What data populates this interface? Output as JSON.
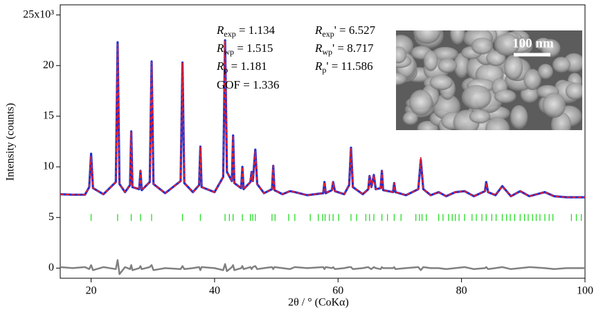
{
  "chart_data": {
    "type": "line",
    "x_label": "2θ / ° (CoKα)",
    "y_label": "Intensity (counts)",
    "xlim": [
      15,
      100
    ],
    "xticks": [
      20,
      40,
      60,
      80,
      100
    ],
    "ylim": [
      -1,
      26
    ],
    "yticks": [
      0,
      5,
      10,
      15,
      20,
      {
        "value": 25,
        "label": "25x10³"
      }
    ],
    "x": [
      15,
      17,
      19,
      19.7,
      20.0,
      20.3,
      22,
      24.0,
      24.3,
      24.6,
      25.5,
      26.3,
      26.5,
      26.7,
      27.8,
      28.0,
      28.2,
      29.5,
      29.8,
      30.1,
      32,
      34.5,
      34.8,
      35.1,
      36.5,
      37.5,
      37.7,
      37.9,
      40,
      41.4,
      41.7,
      42.0,
      42.8,
      43.0,
      43.2,
      44.3,
      44.5,
      44.7,
      45.8,
      46.0,
      46.2,
      46.6,
      46.9,
      48,
      49.3,
      49.5,
      49.7,
      51,
      52.2,
      53.0,
      55,
      57.6,
      57.8,
      58.0,
      59.0,
      59.2,
      59.5,
      61,
      61.8,
      62.1,
      62.4,
      64,
      64.9,
      65.1,
      65.4,
      65.8,
      66.1,
      66.9,
      67.1,
      67.3,
      68.9,
      69.1,
      69.3,
      71,
      73.0,
      73.4,
      73.8,
      75,
      76.3,
      77.5,
      79.0,
      80.5,
      82,
      83.8,
      84.0,
      84.3,
      85.5,
      86.6,
      88,
      89.5,
      91,
      93.5,
      95,
      97,
      100
    ],
    "series": [
      {
        "color": "#1f2fd0",
        "values": [
          7.3,
          7.25,
          7.25,
          8.0,
          11.3,
          7.9,
          7.3,
          8.5,
          22.3,
          8.3,
          7.5,
          8.2,
          13.5,
          8.0,
          7.8,
          9.6,
          7.7,
          8.5,
          20.4,
          8.3,
          7.4,
          8.6,
          20.3,
          8.4,
          7.5,
          8.2,
          12.0,
          8.0,
          7.5,
          9.0,
          22.5,
          9.5,
          8.6,
          13.1,
          8.4,
          7.9,
          10.0,
          7.8,
          8.5,
          9.5,
          8.6,
          11.7,
          8.3,
          7.4,
          7.8,
          10.1,
          7.7,
          7.3,
          7.6,
          7.5,
          7.2,
          7.4,
          8.5,
          7.4,
          7.7,
          8.5,
          7.6,
          7.3,
          8.2,
          11.9,
          8.0,
          7.3,
          7.8,
          9.1,
          8.0,
          9.2,
          7.8,
          7.9,
          9.6,
          7.7,
          7.5,
          8.4,
          7.5,
          7.2,
          7.8,
          10.7,
          7.8,
          7.2,
          7.5,
          7.1,
          7.5,
          7.6,
          7.1,
          7.6,
          8.5,
          7.5,
          7.2,
          8.1,
          7.1,
          7.6,
          7.1,
          7.5,
          7.1,
          7.0,
          7.0
        ]
      },
      {
        "color": "#e8202a",
        "values": [
          7.3,
          7.25,
          7.25,
          8.0,
          11.0,
          7.9,
          7.3,
          8.5,
          22.1,
          8.3,
          7.5,
          8.2,
          13.5,
          8.0,
          7.8,
          9.6,
          7.7,
          8.5,
          20.3,
          8.3,
          7.4,
          8.6,
          20.3,
          8.4,
          7.5,
          8.2,
          12.0,
          8.0,
          7.5,
          9.0,
          22.4,
          9.5,
          8.6,
          13.1,
          8.4,
          7.9,
          10.0,
          7.8,
          8.5,
          9.5,
          8.6,
          11.5,
          8.3,
          7.4,
          7.8,
          10.1,
          7.7,
          7.3,
          7.6,
          7.5,
          7.2,
          7.4,
          8.5,
          7.4,
          7.7,
          8.5,
          7.6,
          7.3,
          8.2,
          11.8,
          8.0,
          7.3,
          7.8,
          9.1,
          8.0,
          9.2,
          7.8,
          7.9,
          9.6,
          7.7,
          7.5,
          8.4,
          7.5,
          7.2,
          7.8,
          10.9,
          7.8,
          7.2,
          7.5,
          7.1,
          7.5,
          7.6,
          7.1,
          7.6,
          8.4,
          7.5,
          7.2,
          8.1,
          7.1,
          7.6,
          7.1,
          7.5,
          7.1,
          7.0,
          7.0
        ]
      },
      {
        "color": "#808080",
        "values": [
          0.1,
          0.0,
          0.1,
          -0.1,
          0.3,
          -0.2,
          0.1,
          -0.1,
          0.8,
          -0.6,
          0.1,
          -0.1,
          0.3,
          -0.2,
          0.0,
          0.2,
          -0.1,
          0.1,
          0.3,
          -0.2,
          0.0,
          -0.1,
          0.2,
          -0.1,
          0.0,
          0.1,
          -0.2,
          0.1,
          0.0,
          -0.2,
          0.4,
          -0.3,
          0.1,
          0.3,
          -0.2,
          0.0,
          0.2,
          -0.1,
          0.1,
          -0.1,
          0.1,
          0.2,
          -0.1,
          0.0,
          0.1,
          -0.1,
          0.1,
          0.0,
          -0.1,
          0.1,
          0.0,
          0.1,
          -0.1,
          0.1,
          0.0,
          0.1,
          -0.1,
          0.0,
          0.1,
          0.1,
          -0.1,
          0.0,
          0.1,
          0.0,
          -0.1,
          0.1,
          0.0,
          -0.1,
          0.1,
          0.0,
          0.0,
          0.1,
          -0.1,
          0.0,
          0.1,
          -0.2,
          0.1,
          0.0,
          0.0,
          -0.1,
          0.0,
          0.1,
          -0.1,
          0.0,
          0.1,
          -0.1,
          0.0,
          0.1,
          -0.1,
          0.0,
          0.1,
          0.0,
          -0.1,
          0.0,
          0.0
        ]
      }
    ],
    "bragg": {
      "color": "#22dd22",
      "level": 5,
      "positions": [
        20.0,
        24.3,
        26.5,
        28.0,
        29.8,
        34.8,
        37.7,
        41.7,
        42.4,
        43.0,
        44.5,
        45.8,
        46.2,
        46.6,
        49.3,
        49.8,
        52.0,
        53.0,
        55.5,
        56.8,
        57.5,
        57.9,
        58.6,
        59.2,
        60.1,
        62.1,
        63.0,
        64.5,
        65.1,
        65.8,
        67.1,
        68.0,
        69.1,
        70.2,
        72.6,
        73.2,
        73.6,
        74.3,
        76.3,
        77.0,
        77.9,
        78.5,
        79.0,
        79.6,
        80.5,
        81.7,
        82.4,
        83.3,
        84.0,
        84.9,
        85.6,
        86.6,
        87.3,
        87.9,
        88.6,
        89.5,
        90.2,
        90.8,
        91.5,
        92.1,
        92.7,
        93.5,
        94.2,
        94.8,
        97.8,
        98.6,
        99.4
      ]
    },
    "annotations": [
      {
        "symbol": "R",
        "sub": "exp",
        "text": " = 1.134"
      },
      {
        "symbol": "R",
        "sub": "exp",
        "text": "' = 6.527"
      },
      {
        "symbol": "R",
        "sub": "wp",
        "text": " = 1.515"
      },
      {
        "symbol": "R",
        "sub": "wp",
        "text": "' = 8.717"
      },
      {
        "symbol": "R",
        "sub": "p",
        "text": " = 1.181"
      },
      {
        "symbol": "R",
        "sub": "p",
        "text": "' = 11.586"
      },
      {
        "text": "GOF = 1.336"
      }
    ],
    "inset": {
      "scale_label": "100 nm"
    }
  }
}
